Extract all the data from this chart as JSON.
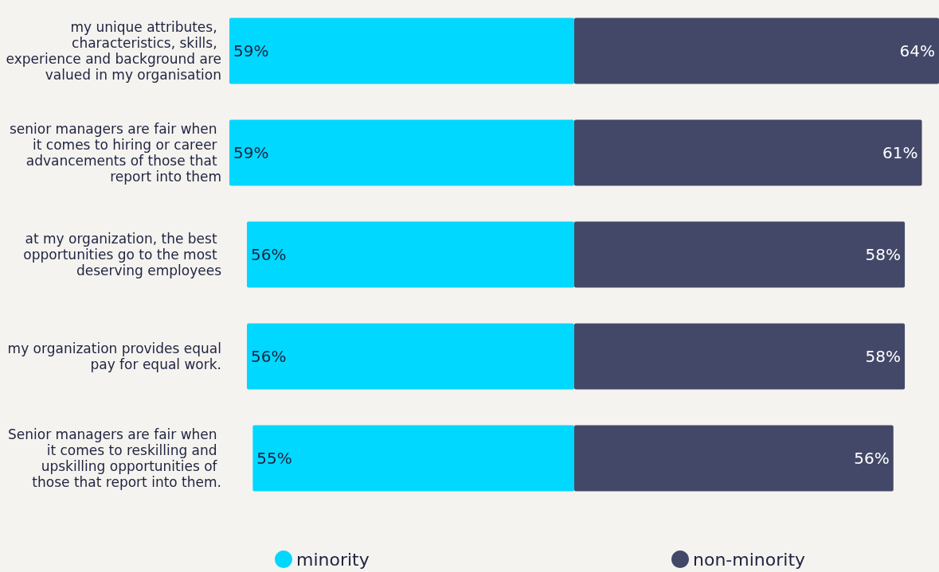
{
  "chart_data": [
    {
      "type": "bar",
      "orientation": "horizontal",
      "categories": [
        "my unique attributes, characteristics, skills, experience and background are valued in my organisation",
        "senior managers are fair when it comes to hiring or career advancements of those that report into them",
        "at my organization, the best opportunities go to the most deserving employees",
        "my organization provides equal pay for equal work.",
        "Senior managers are fair when it comes to reskilling and upskilling opportunities of those that report into them."
      ],
      "series": [
        {
          "name": "minority",
          "color": "#00d8ff",
          "values": [
            59,
            59,
            56,
            56,
            55
          ],
          "value_labels": [
            "59%",
            "59%",
            "56%",
            "56%",
            "55%"
          ]
        }
      ],
      "xlim": [
        59,
        0
      ],
      "tick_labels": "y",
      "legend": "bottom"
    },
    {
      "type": "bar",
      "orientation": "horizontal",
      "categories": [
        null,
        null,
        null,
        null,
        null
      ],
      "series": [
        {
          "name": "non-minority",
          "color": "#434868",
          "values": [
            64,
            61,
            58,
            58,
            56
          ],
          "value_labels": [
            "64%",
            "61%",
            "58%",
            "58%",
            "56%"
          ]
        }
      ],
      "xlim": [
        0,
        64
      ],
      "tick_labels": false,
      "legend": "bottom"
    }
  ]
}
